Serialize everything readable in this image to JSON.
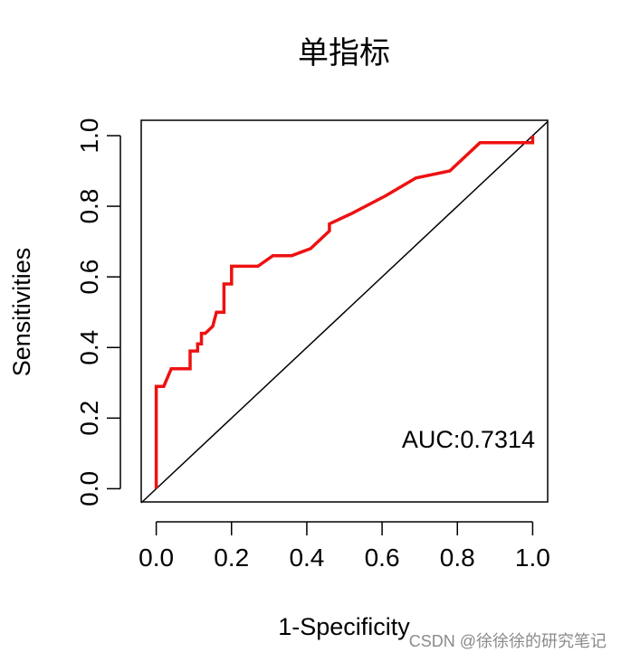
{
  "chart_data": {
    "type": "line",
    "title": "单指标",
    "xlabel": "1-Specificity",
    "ylabel": "Sensitivities",
    "xlim": [
      0,
      1
    ],
    "ylim": [
      0,
      1
    ],
    "x_ticks": [
      "0.0",
      "0.2",
      "0.4",
      "0.6",
      "0.8",
      "1.0"
    ],
    "y_ticks": [
      "0.0",
      "0.2",
      "0.4",
      "0.6",
      "0.8",
      "1.0"
    ],
    "grid": false,
    "annotation": "AUC:0.7314",
    "series": [
      {
        "name": "ROC",
        "color": "#ee1111",
        "x": [
          0.0,
          0.0,
          0.02,
          0.04,
          0.09,
          0.09,
          0.11,
          0.11,
          0.12,
          0.12,
          0.13,
          0.15,
          0.16,
          0.18,
          0.18,
          0.2,
          0.2,
          0.27,
          0.31,
          0.36,
          0.41,
          0.46,
          0.46,
          0.52,
          0.61,
          0.69,
          0.78,
          0.86,
          1.0,
          1.0
        ],
        "y": [
          0.0,
          0.29,
          0.29,
          0.34,
          0.34,
          0.39,
          0.39,
          0.41,
          0.41,
          0.44,
          0.44,
          0.46,
          0.5,
          0.5,
          0.58,
          0.58,
          0.63,
          0.63,
          0.66,
          0.66,
          0.68,
          0.73,
          0.75,
          0.78,
          0.83,
          0.88,
          0.9,
          0.98,
          0.98,
          1.0
        ]
      },
      {
        "name": "reference",
        "color": "#000000",
        "x": [
          -0.04,
          1.04
        ],
        "y": [
          -0.04,
          1.04
        ]
      }
    ]
  },
  "watermark": "CSDN @徐徐徐的研究笔记"
}
